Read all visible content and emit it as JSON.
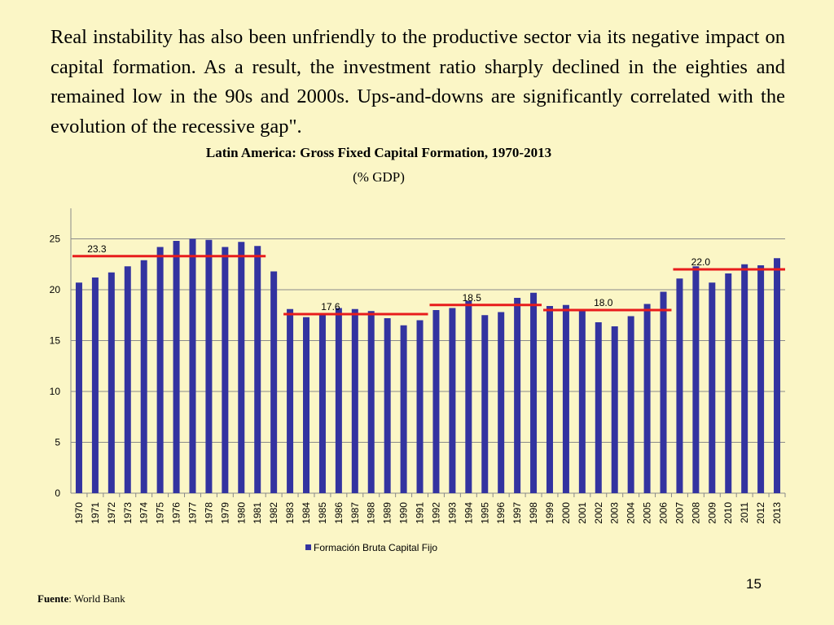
{
  "slide": {
    "paragraph": "Real instability has also been unfriendly to the productive sector via its negative impact on capital formation. As a result, the investment ratio sharply declined in the eighties and remained low in the 90s and 2000s. Ups-and-downs are significantly correlated with the evolution of  the recessive gap\".",
    "page_number": "15",
    "source_label": "Fuente",
    "source_text": ": World Bank"
  },
  "chart_data": {
    "type": "bar",
    "title": "Latin America: Gross Fixed Capital Formation, 1970-2013",
    "subtitle": "(% GDP)",
    "xlabel": "",
    "ylabel": "",
    "ylim": [
      0,
      25
    ],
    "yticks": [
      0,
      5,
      10,
      15,
      20,
      25
    ],
    "grid": true,
    "legend_position": "bottom",
    "bar_color": "#3333a0",
    "average_line_color": "#e81c1c",
    "categories": [
      "1970",
      "1971",
      "1972",
      "1973",
      "1974",
      "1975",
      "1976",
      "1977",
      "1978",
      "1979",
      "1980",
      "1981",
      "1982",
      "1983",
      "1984",
      "1985",
      "1986",
      "1987",
      "1988",
      "1989",
      "1990",
      "1991",
      "1992",
      "1993",
      "1994",
      "1995",
      "1996",
      "1997",
      "1998",
      "1999",
      "2000",
      "2001",
      "2002",
      "2003",
      "2004",
      "2005",
      "2006",
      "2007",
      "2008",
      "2009",
      "2010",
      "2011",
      "2012",
      "2013"
    ],
    "series": [
      {
        "name": "Formación Bruta Capital Fijo",
        "values": [
          20.7,
          21.2,
          21.7,
          22.3,
          22.9,
          24.2,
          24.8,
          25.0,
          24.9,
          24.2,
          24.7,
          24.3,
          21.8,
          18.1,
          17.3,
          17.5,
          18.2,
          18.1,
          17.9,
          17.2,
          16.5,
          17.0,
          18.0,
          18.2,
          18.9,
          17.5,
          17.8,
          19.2,
          19.7,
          18.4,
          18.5,
          17.9,
          16.8,
          16.4,
          17.4,
          18.6,
          19.8,
          21.1,
          22.3,
          20.7,
          21.6,
          22.5,
          22.4,
          23.1
        ]
      }
    ],
    "period_averages": [
      {
        "label": "23.3",
        "value": 23.3,
        "from": "1970",
        "to": "1981"
      },
      {
        "label": "17.6",
        "value": 17.6,
        "from": "1983",
        "to": "1991"
      },
      {
        "label": "18.5",
        "value": 18.5,
        "from": "1992",
        "to": "1998"
      },
      {
        "label": "18.0",
        "value": 18.0,
        "from": "1999",
        "to": "2006"
      },
      {
        "label": "22.0",
        "value": 22.0,
        "from": "2007",
        "to": "2013"
      }
    ]
  }
}
